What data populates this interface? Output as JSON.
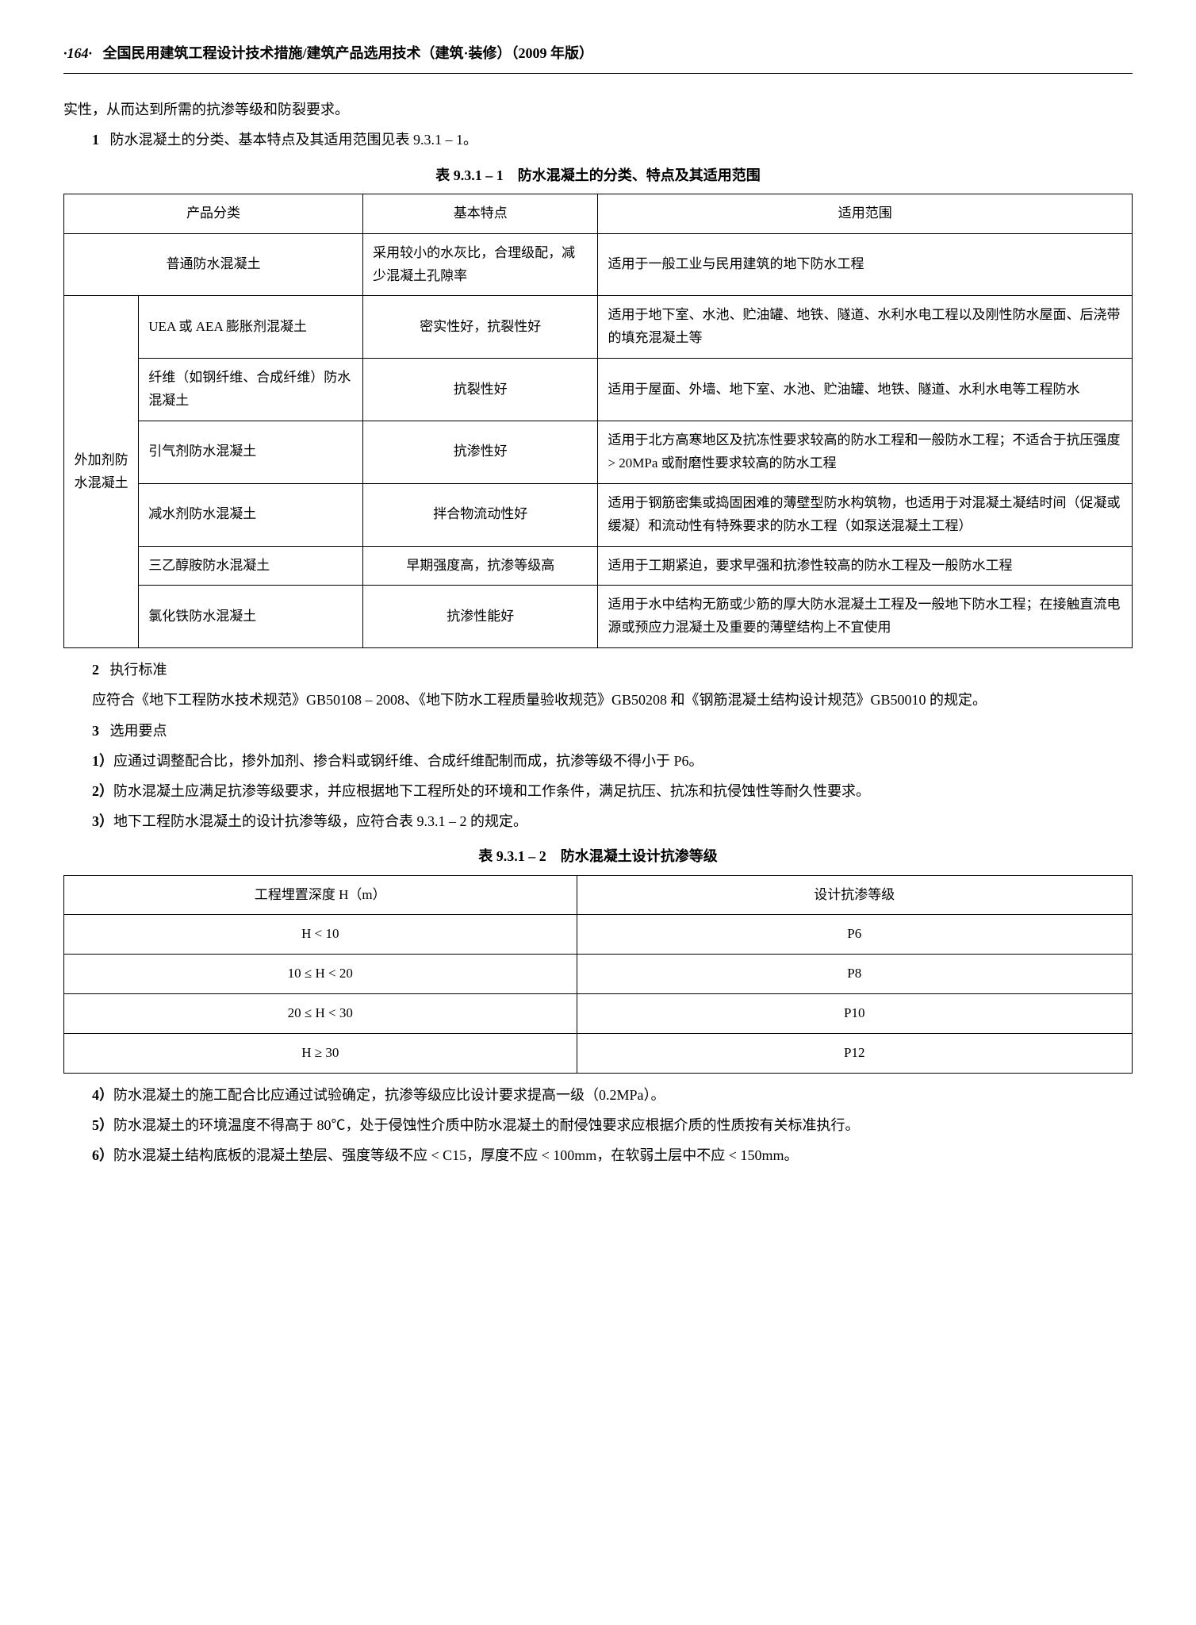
{
  "header": {
    "page_number": "·164·",
    "title": "全国民用建筑工程设计技术措施/建筑产品选用技术（建筑·装修）（2009 年版）"
  },
  "intro_line": "实性，从而达到所需的抗渗等级和防裂要求。",
  "item1_line": "防水混凝土的分类、基本特点及其适用范围见表 9.3.1 – 1。",
  "item1_num": "1",
  "table1": {
    "caption": "表 9.3.1 – 1　防水混凝土的分类、特点及其适用范围",
    "headers": [
      "产品分类",
      "基本特点",
      "适用范围"
    ],
    "row_plain": {
      "name": "普通防水混凝土",
      "feature": "采用较小的水灰比，合理级配，减少混凝土孔隙率",
      "scope": "适用于一般工业与民用建筑的地下防水工程"
    },
    "group_label": "外加剂防水混凝土",
    "group_rows": [
      {
        "name": "UEA 或 AEA 膨胀剂混凝土",
        "feature": "密实性好，抗裂性好",
        "scope": "适用于地下室、水池、贮油罐、地铁、隧道、水利水电工程以及刚性防水屋面、后浇带的填充混凝土等"
      },
      {
        "name": "纤维（如钢纤维、合成纤维）防水混凝土",
        "feature": "抗裂性好",
        "scope": "适用于屋面、外墙、地下室、水池、贮油罐、地铁、隧道、水利水电等工程防水"
      },
      {
        "name": "引气剂防水混凝土",
        "feature": "抗渗性好",
        "scope": "适用于北方高寒地区及抗冻性要求较高的防水工程和一般防水工程；不适合于抗压强度 > 20MPa 或耐磨性要求较高的防水工程"
      },
      {
        "name": "减水剂防水混凝土",
        "feature": "拌合物流动性好",
        "scope": "适用于钢筋密集或捣固困难的薄壁型防水构筑物，也适用于对混凝土凝结时间（促凝或缓凝）和流动性有特殊要求的防水工程（如泵送混凝土工程）"
      },
      {
        "name": "三乙醇胺防水混凝土",
        "feature": "早期强度高，抗渗等级高",
        "scope": "适用于工期紧迫，要求早强和抗渗性较高的防水工程及一般防水工程"
      },
      {
        "name": "氯化铁防水混凝土",
        "feature": "抗渗性能好",
        "scope": "适用于水中结构无筋或少筋的厚大防水混凝土工程及一般地下防水工程；在接触直流电源或预应力混凝土及重要的薄壁结构上不宜使用"
      }
    ]
  },
  "item2_num": "2",
  "item2_title": "执行标准",
  "item2_text": "应符合《地下工程防水技术规范》GB50108 – 2008、《地下防水工程质量验收规范》GB50208 和《钢筋混凝土结构设计规范》GB50010 的规定。",
  "item3_num": "3",
  "item3_title": "选用要点",
  "point3_1_num": "1）",
  "point3_1": "应通过调整配合比，掺外加剂、掺合料或钢纤维、合成纤维配制而成，抗渗等级不得小于 P6。",
  "point3_2_num": "2）",
  "point3_2": "防水混凝土应满足抗渗等级要求，并应根据地下工程所处的环境和工作条件，满足抗压、抗冻和抗侵蚀性等耐久性要求。",
  "point3_3_num": "3）",
  "point3_3": "地下工程防水混凝土的设计抗渗等级，应符合表 9.3.1 – 2 的规定。",
  "table2": {
    "caption": "表 9.3.1 – 2　防水混凝土设计抗渗等级",
    "headers": [
      "工程埋置深度 H（m）",
      "设计抗渗等级"
    ],
    "rows": [
      {
        "depth": "H < 10",
        "grade": "P6"
      },
      {
        "depth": "10 ≤ H < 20",
        "grade": "P8"
      },
      {
        "depth": "20 ≤ H < 30",
        "grade": "P10"
      },
      {
        "depth": "H ≥ 30",
        "grade": "P12"
      }
    ]
  },
  "point3_4_num": "4）",
  "point3_4": "防水混凝土的施工配合比应通过试验确定，抗渗等级应比设计要求提高一级（0.2MPa）。",
  "point3_5_num": "5）",
  "point3_5": "防水混凝土的环境温度不得高于 80℃，处于侵蚀性介质中防水混凝土的耐侵蚀要求应根据介质的性质按有关标准执行。",
  "point3_6_num": "6）",
  "point3_6": "防水混凝土结构底板的混凝土垫层、强度等级不应 < C15，厚度不应 < 100mm，在软弱土层中不应 < 150mm。"
}
